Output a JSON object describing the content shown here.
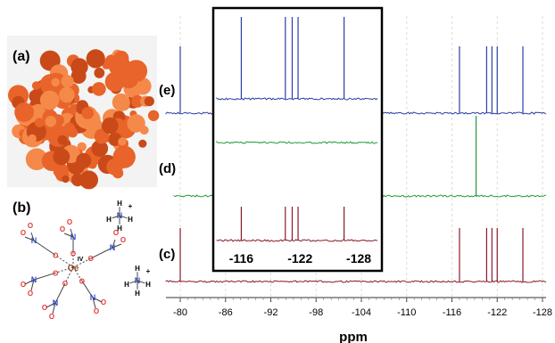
{
  "panel_labels": {
    "a": "(a)",
    "b": "(b)",
    "c": "(c)",
    "d": "(d)",
    "e": "(e)"
  },
  "colors": {
    "trace_e": "#2b3fa6",
    "trace_d": "#1f9b3a",
    "trace_c": "#8a1a2a",
    "powder": "#e8642a",
    "oxygen": "#e53935",
    "nitrogen": "#2f4fd0",
    "axis": "#333333",
    "grid": "#dddddd"
  },
  "structure": {
    "metal": "Ce",
    "oxidation": "IV",
    "atoms": {
      "N": "N",
      "H": "H",
      "O": "O",
      "plus": "+"
    }
  },
  "chart_data": {
    "type": "line",
    "title": "",
    "xlabel": "ppm",
    "ylabel": "",
    "xlim": [
      -78,
      -130
    ],
    "x_ticks": [
      -80,
      -86,
      -92,
      -98,
      -104,
      -110,
      -116,
      -122,
      -128
    ],
    "grid": "vertical dashed",
    "series": [
      {
        "name": "(e)",
        "peaks_ppm": [
          -80.0,
          -117.0,
          -120.6,
          -121.3,
          -122.0,
          -125.4
        ]
      },
      {
        "name": "(d)",
        "peaks_ppm": [
          -119.2
        ]
      },
      {
        "name": "(c)",
        "peaks_ppm": [
          -80.0,
          -117.0,
          -120.6,
          -121.3,
          -122.0,
          -125.4
        ]
      }
    ],
    "inset": {
      "x_ticks": [
        -116,
        -122,
        -128
      ],
      "xlim": [
        -113.5,
        -130
      ],
      "series": [
        {
          "name": "(e)",
          "peaks_ppm": [
            -116.0,
            -120.5,
            -121.2,
            -121.8,
            -126.5
          ]
        },
        {
          "name": "(d)",
          "peaks_ppm": []
        },
        {
          "name": "(c)",
          "peaks_ppm": [
            -116.0,
            -120.5,
            -121.2,
            -121.8,
            -126.5
          ]
        }
      ]
    }
  }
}
